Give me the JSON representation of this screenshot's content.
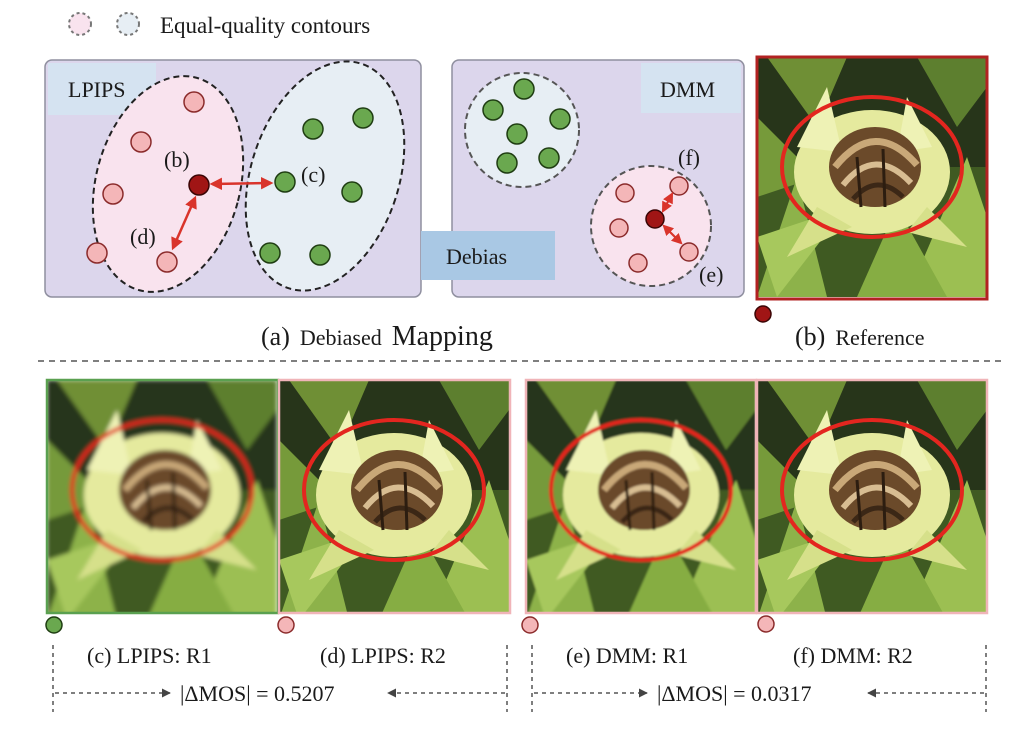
{
  "legend": {
    "label": "Equal-quality contours"
  },
  "panel_lpips": {
    "tag": "LPIPS",
    "labels": {
      "b": "(b)",
      "c": "(c)",
      "d": "(d)"
    }
  },
  "panel_dmm": {
    "tag": "DMM",
    "labels": {
      "f": "(f)",
      "e": "(e)"
    }
  },
  "debias": {
    "label": "Debias"
  },
  "captions": {
    "a_prefix": "(a)",
    "a_word1": "Debiased",
    "a_word2": "Mapping",
    "b_prefix": "(b)",
    "b_word": "Reference"
  },
  "thumbs": {
    "c": "(c) LPIPS: R1",
    "d": "(d) LPIPS: R2",
    "e": "(e) DMM: R1",
    "f": "(f) DMM: R2"
  },
  "delta": {
    "lpips": "|ΔMOS| = 0.5207",
    "dmm": "|ΔMOS| = 0.0317"
  },
  "colors": {
    "panel_bg": "#dcd6ec",
    "pink_contour": "#f9e3ee",
    "blue_contour": "#e7eef4",
    "pink_dot": "#f4b6b8",
    "green_dot": "#6aa84f",
    "red_dot": "#a01515",
    "arrow": "#d9342b",
    "debias_box": "#a9c8e4",
    "tag_box": "#d5e3f1",
    "ref_border": "#b22222",
    "r1_lpips_border": "#5aa050",
    "r_border_pink": "#f0b4b8"
  }
}
